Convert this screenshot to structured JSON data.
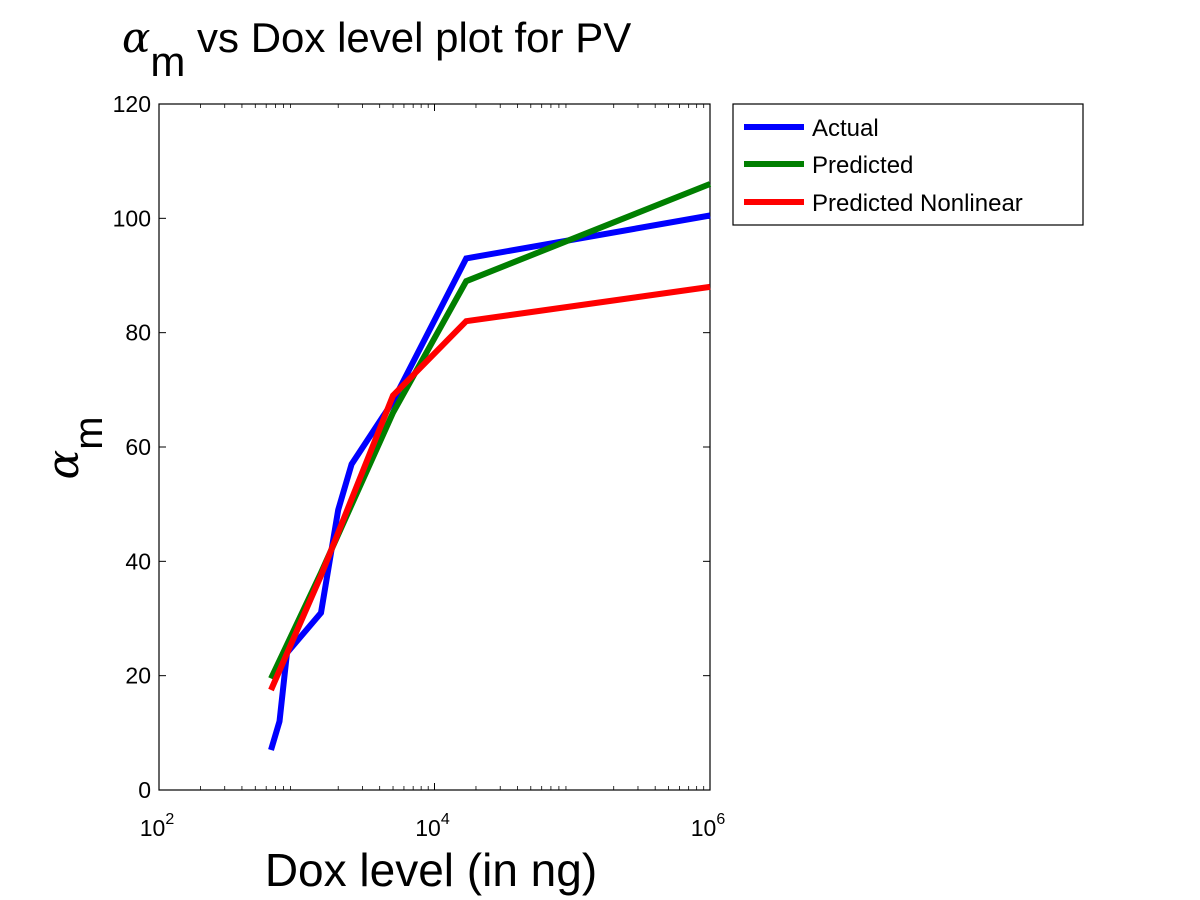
{
  "chart_data": {
    "type": "line",
    "title": {
      "symbol": "α",
      "subscript": "m",
      "text": " vs Dox level plot for PV"
    },
    "xlabel": "Dox level (in ng)",
    "ylabel": {
      "symbol": "α",
      "subscript": "m"
    },
    "xscale": "log",
    "xlim": [
      100,
      1000000
    ],
    "ylim": [
      0,
      120
    ],
    "x_ticks": [
      {
        "base": "10",
        "exp": "2",
        "value": 100
      },
      {
        "base": "10",
        "exp": "4",
        "value": 10000
      },
      {
        "base": "10",
        "exp": "6",
        "value": 1000000
      }
    ],
    "y_ticks": [
      {
        "label": "0",
        "value": 0
      },
      {
        "label": "20",
        "value": 20
      },
      {
        "label": "40",
        "value": 40
      },
      {
        "label": "60",
        "value": 60
      },
      {
        "label": "80",
        "value": 80
      },
      {
        "label": "100",
        "value": 100
      },
      {
        "label": "120",
        "value": 120
      }
    ],
    "grid": false,
    "legend_position": "outside-right",
    "series": [
      {
        "name": "Actual",
        "color": "#0000ff",
        "x": [
          650,
          750,
          850,
          1500,
          2000,
          2500,
          5000,
          17000,
          1000000
        ],
        "y": [
          7,
          12,
          24,
          31,
          49,
          57,
          68,
          93,
          100.5
        ]
      },
      {
        "name": "Predicted",
        "color": "#007f00",
        "x": [
          650,
          1500,
          5000,
          17000,
          1000000
        ],
        "y": [
          19.5,
          38,
          66,
          89,
          106
        ]
      },
      {
        "name": "Predicted Nonlinear",
        "color": "#ff0000",
        "x": [
          650,
          1500,
          5000,
          17000,
          1000000
        ],
        "y": [
          17.5,
          37.5,
          69,
          82,
          88
        ]
      }
    ]
  }
}
